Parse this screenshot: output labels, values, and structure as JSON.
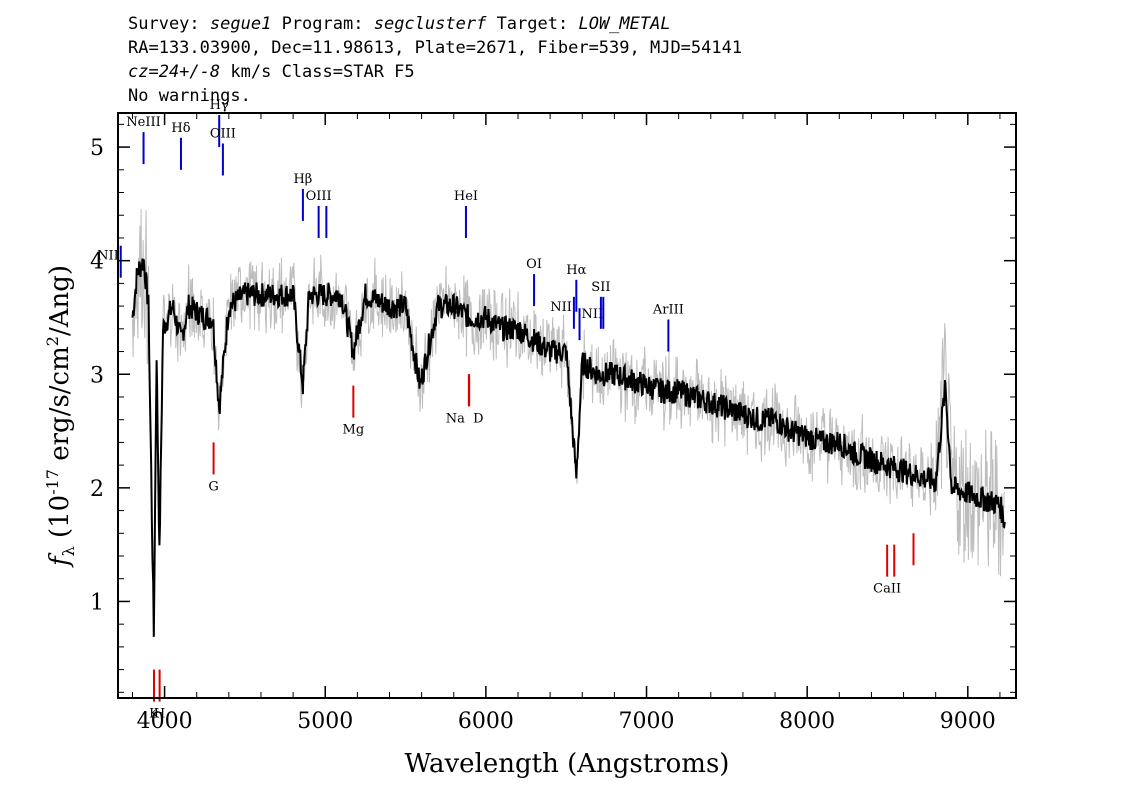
{
  "header": {
    "survey_label": "Survey:",
    "survey": "segue1",
    "program_label": "Program:",
    "program": "segclusterf",
    "target_label": "Target:",
    "target": "LOW_METAL",
    "coords": "RA=133.03900, Dec=11.98613, Plate=2671, Fiber=539, MJD=54141",
    "cz": "cz=24+/-8",
    "cz_unit": "km/s",
    "class": "Class=STAR F5",
    "warnings": "No warnings."
  },
  "chart_data": {
    "type": "line",
    "xlabel": "Wavelength (Angstroms)",
    "ylabel": "f_λ (10^-17 erg/s/cm^2/Ang)",
    "xlim": [
      3710,
      9300
    ],
    "ylim": [
      0.15,
      5.3
    ],
    "x_ticks": [
      4000,
      5000,
      6000,
      7000,
      8000,
      9000
    ],
    "y_ticks": [
      1,
      2,
      3,
      4,
      5
    ],
    "colors": {
      "spectrum": "#000000",
      "noise": "#bdbdbd",
      "emission": "#0000cc",
      "absorption": "#dd0000"
    },
    "series": [
      {
        "name": "flux",
        "x": [
          3800,
          3830,
          3870,
          3900,
          3933,
          3950,
          3968,
          3990,
          4050,
          4102,
          4150,
          4250,
          4300,
          4340,
          4400,
          4500,
          4600,
          4700,
          4800,
          4861,
          4900,
          5000,
          5100,
          5175,
          5250,
          5400,
          5500,
          5590,
          5700,
          5800,
          5895,
          6000,
          6100,
          6200,
          6300,
          6400,
          6500,
          6563,
          6600,
          6700,
          6800,
          6900,
          7000,
          7100,
          7200,
          7300,
          7400,
          7500,
          7600,
          7700,
          7800,
          7900,
          8000,
          8100,
          8200,
          8300,
          8400,
          8500,
          8600,
          8700,
          8800,
          8860,
          8900,
          9000,
          9100,
          9200,
          9230
        ],
        "y": [
          3.5,
          3.9,
          4.0,
          3.6,
          0.7,
          3.2,
          1.4,
          3.4,
          3.6,
          3.3,
          3.6,
          3.5,
          3.5,
          2.7,
          3.6,
          3.7,
          3.7,
          3.7,
          3.7,
          2.9,
          3.7,
          3.7,
          3.7,
          3.2,
          3.7,
          3.6,
          3.6,
          2.9,
          3.6,
          3.6,
          3.5,
          3.5,
          3.4,
          3.4,
          3.3,
          3.2,
          3.2,
          2.1,
          3.1,
          3.0,
          3.0,
          2.95,
          2.9,
          2.85,
          2.85,
          2.8,
          2.75,
          2.7,
          2.65,
          2.6,
          2.6,
          2.5,
          2.45,
          2.4,
          2.4,
          2.3,
          2.25,
          2.2,
          2.15,
          2.1,
          2.05,
          2.9,
          2.0,
          1.95,
          1.9,
          1.85,
          1.7
        ]
      }
    ],
    "emission_lines": [
      {
        "label": "NII",
        "x": 3727,
        "y": 3.85,
        "label_pos": "left"
      },
      {
        "label": "NeIII",
        "x": 3869,
        "y": 4.85,
        "label_pos": "top"
      },
      {
        "label": "Hδ",
        "x": 4102,
        "y": 4.8,
        "label_pos": "top"
      },
      {
        "label": "Hγ",
        "x": 4340,
        "y": 5.0,
        "label_pos": "top"
      },
      {
        "label": "OIII",
        "x": 4363,
        "y": 4.75,
        "label_pos": "top"
      },
      {
        "label": "Hβ",
        "x": 4861,
        "y": 4.35,
        "label_pos": "top"
      },
      {
        "label": "OIII",
        "x": 4959,
        "y": 4.2,
        "label_pos": "top"
      },
      {
        "label": "",
        "x": 5007,
        "y": 4.2,
        "label_pos": "none"
      },
      {
        "label": "HeI",
        "x": 5876,
        "y": 4.2,
        "label_pos": "top"
      },
      {
        "label": "OI",
        "x": 6300,
        "y": 3.6,
        "label_pos": "top"
      },
      {
        "label": "NII",
        "x": 6548,
        "y": 3.4,
        "label_pos": "left"
      },
      {
        "label": "Hα",
        "x": 6563,
        "y": 3.55,
        "label_pos": "top"
      },
      {
        "label": "NII",
        "x": 6583,
        "y": 3.3,
        "label_pos": "right"
      },
      {
        "label": "SII",
        "x": 6716,
        "y": 3.4,
        "label_pos": "top"
      },
      {
        "label": "",
        "x": 6731,
        "y": 3.4,
        "label_pos": "none"
      },
      {
        "label": "ArIII",
        "x": 7136,
        "y": 3.2,
        "label_pos": "top"
      }
    ],
    "absorption_lines": [
      {
        "label": "K",
        "x": 3934,
        "y": 0.4,
        "label_pos": "bottom"
      },
      {
        "label": "H",
        "x": 3969,
        "y": 0.4,
        "label_pos": "bottom"
      },
      {
        "label": "G",
        "x": 4305,
        "y": 2.4,
        "label_pos": "bottom"
      },
      {
        "label": "Mg",
        "x": 5175,
        "y": 2.9,
        "label_pos": "bottom"
      },
      {
        "label": "Na",
        "x": 5894,
        "y": 3.0,
        "label_pos": "bottom-left"
      },
      {
        "label": "D",
        "x": 5896,
        "y": 3.0,
        "label_pos": "bottom-right"
      },
      {
        "label": "CaII",
        "x": 8498,
        "y": 1.5,
        "label_pos": "bottom"
      },
      {
        "label": "",
        "x": 8542,
        "y": 1.5,
        "label_pos": "none"
      },
      {
        "label": "",
        "x": 8662,
        "y": 1.6,
        "label_pos": "none"
      }
    ]
  }
}
